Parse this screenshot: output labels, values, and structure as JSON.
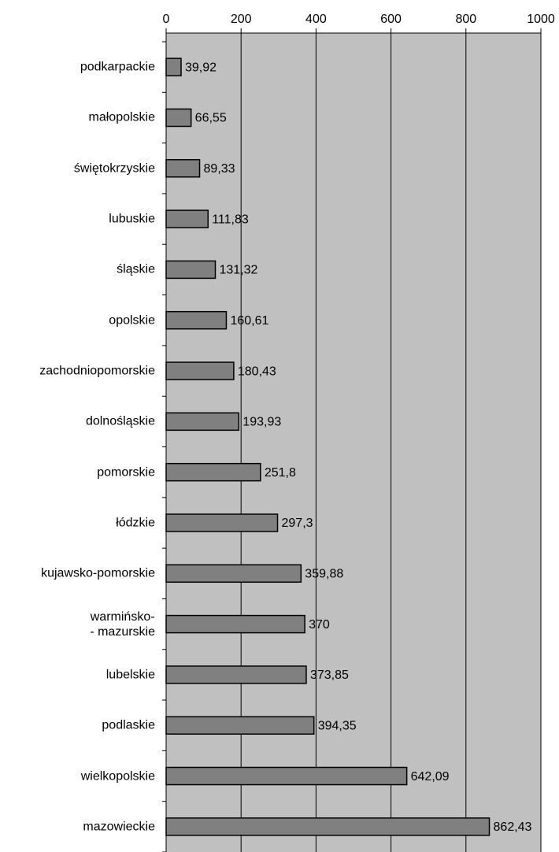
{
  "chart_data": {
    "type": "bar",
    "orientation": "horizontal",
    "categories": [
      "podkarpackie",
      "małopolskie",
      "świętokrzyskie",
      "lubuskie",
      "śląskie",
      "opolskie",
      "zachodniopomorskie",
      "dolnośląskie",
      "pomorskie",
      "łódzkie",
      "kujawsko-pomorskie",
      "warmińsko-\n- mazurskie",
      "lubelskie",
      "podlaskie",
      "wielkopolskie",
      "mazowieckie"
    ],
    "values": [
      39.92,
      66.55,
      89.33,
      111.83,
      131.32,
      160.61,
      180.43,
      193.93,
      251.8,
      297.3,
      359.88,
      370,
      373.85,
      394.35,
      642.09,
      862.43
    ],
    "value_labels": [
      "39,92",
      "66,55",
      "89,33",
      "111,83",
      "131,32",
      "160,61",
      "180,43",
      "193,93",
      "251,8",
      "297,3",
      "359,88",
      "370",
      "373,85",
      "394,35",
      "642,09",
      "862,43"
    ],
    "color": "#808080",
    "xlim": [
      0,
      1000
    ],
    "xticks": [
      0,
      200,
      400,
      600,
      800,
      1000
    ],
    "grid": true
  }
}
